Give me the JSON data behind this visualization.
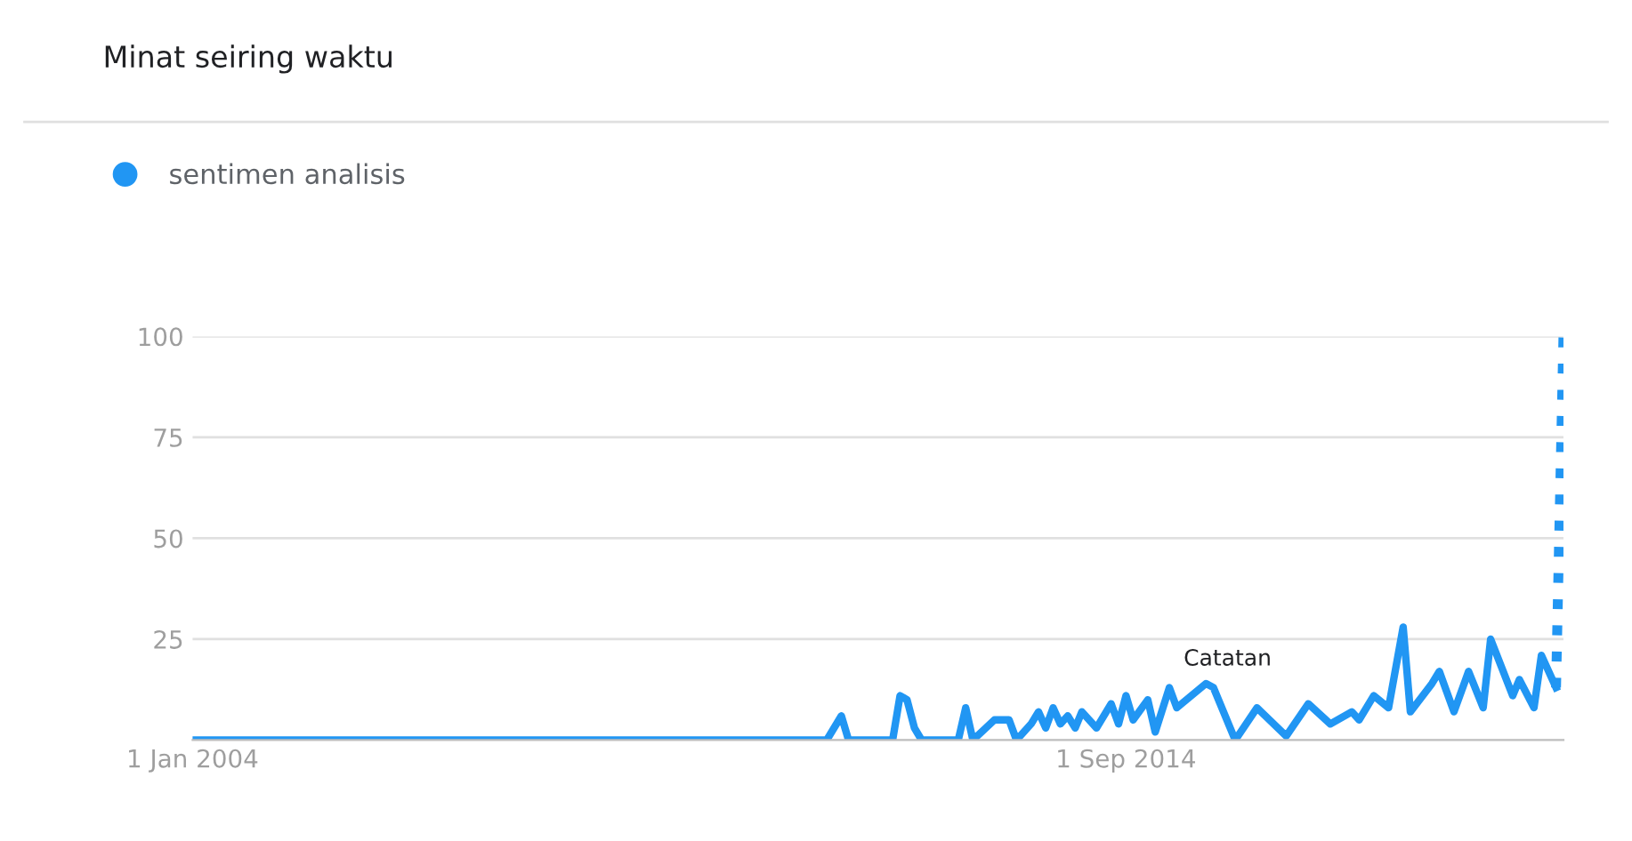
{
  "chart_data": {
    "type": "line",
    "title": "Minat seiring waktu",
    "series": [
      {
        "name": "sentimen analisis",
        "color": "#2196f3",
        "line_style": "solid",
        "x": [
          "2004-01",
          "2011-04",
          "2011-06",
          "2011-07",
          "2012-01",
          "2012-02",
          "2012-03",
          "2012-04",
          "2012-05",
          "2012-10",
          "2012-11",
          "2012-12",
          "2013-03",
          "2013-05",
          "2013-06",
          "2013-08",
          "2013-09",
          "2013-10",
          "2013-11",
          "2013-12",
          "2014-01",
          "2014-02",
          "2014-03",
          "2014-05",
          "2014-07",
          "2014-08",
          "2014-09",
          "2014-10",
          "2014-12",
          "2015-01",
          "2015-03",
          "2015-04",
          "2015-08",
          "2015-09",
          "2015-12",
          "2016-03",
          "2016-07",
          "2016-10",
          "2017-01",
          "2017-04",
          "2017-05",
          "2017-07",
          "2017-09",
          "2017-11",
          "2017-12",
          "2018-03",
          "2018-04",
          "2018-06",
          "2018-08",
          "2018-10",
          "2018-11",
          "2019-02",
          "2019-03",
          "2019-05",
          "2019-06",
          "2019-08"
        ],
        "values": [
          0,
          0,
          6,
          0,
          0,
          11,
          10,
          3,
          0,
          0,
          8,
          0,
          5,
          5,
          0,
          4,
          7,
          3,
          8,
          4,
          6,
          3,
          7,
          3,
          9,
          4,
          11,
          5,
          10,
          2,
          13,
          8,
          14,
          13,
          0,
          8,
          1,
          9,
          4,
          7,
          5,
          11,
          8,
          28,
          7,
          14,
          17,
          7,
          17,
          8,
          25,
          11,
          15,
          8,
          21,
          13
        ]
      },
      {
        "color": "#2196f3",
        "line_style": "dotted",
        "x": [
          "2019-08",
          "2019-09"
        ],
        "values": [
          13,
          100
        ]
      }
    ],
    "xlim": [
      "2004-01",
      "2019-09"
    ],
    "xticks": [
      {
        "value": "2004-01-01",
        "label": "1 Jan 2004"
      },
      {
        "value": "2014-09-01",
        "label": "1 Sep 2014"
      }
    ],
    "ylim": [
      0,
      100
    ],
    "yticks": [
      25,
      50,
      75,
      100
    ],
    "grid": "y",
    "legend": "top left",
    "marker": "none",
    "annotations": [
      "Catatan"
    ]
  }
}
